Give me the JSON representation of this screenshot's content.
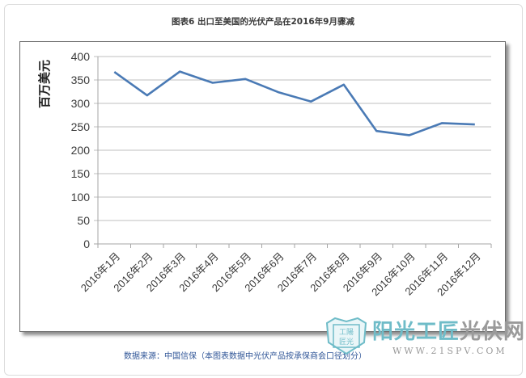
{
  "title": "图表6  出口至美国的光伏产品在2016年9月骤减",
  "source": "数据来源：中国信保（本图表数据中光伏产品按承保商会口径划分）",
  "watermark": {
    "badge_top": "工陽",
    "badge_bottom": "匠光",
    "name_part1": "阳光工匠",
    "name_part2": "光伏网",
    "url": "WWW.21SPV.COM"
  },
  "colors": {
    "line": "#4a7ab5",
    "grid": "#bfbfbf",
    "source_text": "#2f5597",
    "watermark_teal": "#6fbcc8"
  },
  "chart_data": {
    "type": "line",
    "title": "图表6  出口至美国的光伏产品在2016年9月骤减",
    "xlabel": "",
    "ylabel": "百万美元",
    "ylim": [
      0,
      400
    ],
    "yticks": [
      0,
      50,
      100,
      150,
      200,
      250,
      300,
      350,
      400
    ],
    "grid": true,
    "legend": "none",
    "categories": [
      "2016年1月",
      "2016年2月",
      "2016年3月",
      "2016年4月",
      "2016年5月",
      "2016年6月",
      "2016年7月",
      "2016年8月",
      "2016年9月",
      "2016年10月",
      "2016年11月",
      "2016年12月"
    ],
    "series": [
      {
        "name": "出口至美国的光伏产品",
        "values": [
          367,
          317,
          368,
          344,
          352,
          324,
          304,
          340,
          241,
          232,
          258,
          255
        ]
      }
    ]
  }
}
